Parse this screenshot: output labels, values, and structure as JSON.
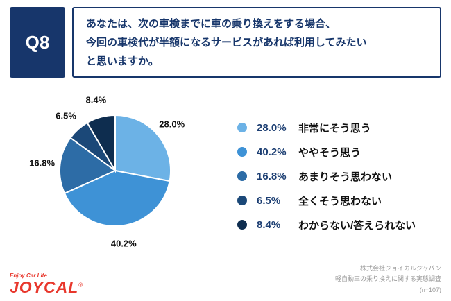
{
  "header": {
    "q_label": "Q8",
    "question_lines": [
      "あなたは、次の車検までに車の乗り換えをする場合、",
      "今回の車検代が半額になるサービスがあれば利用してみたい",
      "と思いますか。"
    ]
  },
  "chart_data": {
    "type": "pie",
    "title": "",
    "labels": [
      "非常にそう思う",
      "ややそう思う",
      "あまりそう思わない",
      "全くそう思わない",
      "わからない/答えられない"
    ],
    "values": [
      28.0,
      40.2,
      16.8,
      6.5,
      8.4
    ],
    "value_labels": [
      "28.0%",
      "40.2%",
      "16.8%",
      "6.5%",
      "8.4%"
    ],
    "colors": [
      "#6cb2e6",
      "#3e92d6",
      "#2d6ca6",
      "#1b4878",
      "#0e2d4f"
    ],
    "start_angle_deg": 0,
    "direction": "clockwise",
    "legend_position": "right"
  },
  "footer": {
    "logo_tagline": "Enjoy Car Life",
    "logo_text": "JOYCAL",
    "logo_reg_mark": "®",
    "source_lines": [
      "株式会社ジョイカルジャパン",
      "軽自動車の乗り換えに関する実態調査",
      "(n=107)"
    ]
  },
  "theme": {
    "navy": "#17366b",
    "legend_value_navy": "#1d3f73",
    "logo_red": "#e8372c",
    "source_gray": "#999999"
  }
}
